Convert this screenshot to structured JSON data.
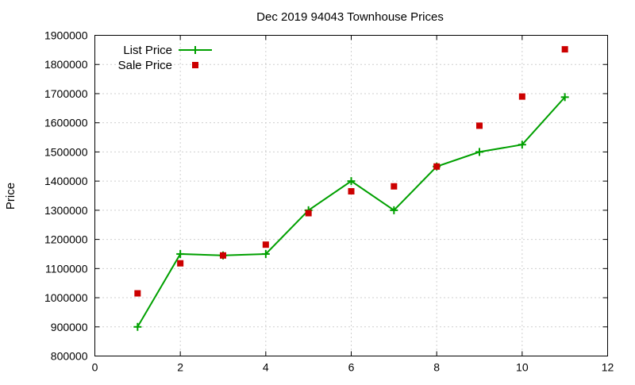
{
  "chart_data": {
    "type": "line",
    "title": "Dec 2019 94043 Townhouse Prices",
    "xlabel": "",
    "ylabel": "Price",
    "xlim": [
      0,
      12
    ],
    "ylim": [
      800000,
      1900000
    ],
    "x_ticks": [
      "0",
      "2",
      "4",
      "6",
      "8",
      "10",
      "12"
    ],
    "y_ticks": [
      "800000",
      "900000",
      "1000000",
      "1100000",
      "1200000",
      "1300000",
      "1400000",
      "1500000",
      "1600000",
      "1700000",
      "1800000",
      "1900000"
    ],
    "grid": true,
    "legend_position": "top-left",
    "series": [
      {
        "name": "List Price",
        "style": "linespoints",
        "color": "#00a000",
        "x": [
          1,
          2,
          3,
          4,
          5,
          6,
          7,
          8,
          9,
          10,
          11
        ],
        "y": [
          900000,
          1150000,
          1145000,
          1150000,
          1300000,
          1400000,
          1300000,
          1450000,
          1500000,
          1525000,
          1688000
        ]
      },
      {
        "name": "Sale Price",
        "style": "points",
        "color": "#cc0000",
        "x": [
          1,
          2,
          3,
          4,
          5,
          6,
          7,
          8,
          9,
          10,
          11
        ],
        "y": [
          1015000,
          1118000,
          1145000,
          1182000,
          1290000,
          1365000,
          1382000,
          1450000,
          1590000,
          1690000,
          1852000
        ]
      }
    ]
  }
}
